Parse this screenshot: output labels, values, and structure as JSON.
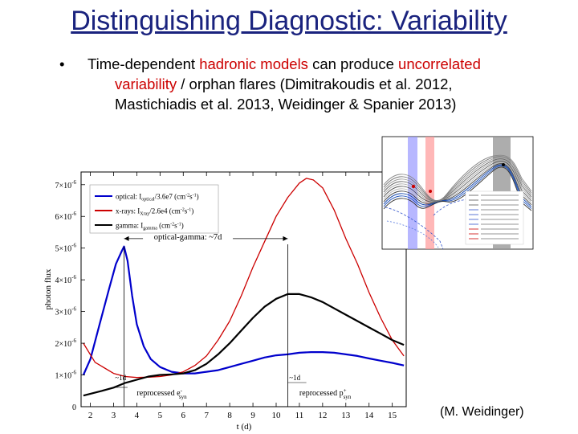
{
  "slide": {
    "title": "Distinguishing Diagnostic: Variability",
    "bullet_marker": "•",
    "bullet_line1_a": "Time-dependent ",
    "bullet_line1_b": "hadronic models",
    "bullet_line1_c": " can produce ",
    "bullet_line1_d": "uncorrelated",
    "bullet_line2_a": "variability",
    "bullet_line2_b": " / orphan flares (Dimitrakoudis et al. 2012,",
    "bullet_line3": "Mastichiadis et al. 2013, Weidinger & Spanier 2013)",
    "credit": "(M. Weidinger)"
  },
  "chart_data": [
    {
      "type": "line",
      "xlabel": "t (d)",
      "ylabel": "photon flux",
      "xlim": [
        1.6,
        15.6
      ],
      "ylim": [
        0,
        7.4e-06
      ],
      "x_ticks": [
        "2",
        "3",
        "4",
        "5",
        "6",
        "7",
        "8",
        "9",
        "10",
        "11",
        "12",
        "13",
        "14",
        "15"
      ],
      "y_ticks": [
        "0",
        "1×10",
        "2×10",
        "3×10",
        "4×10",
        "5×10",
        "6×10",
        "7×10"
      ],
      "y_tick_exp": "-6",
      "legend": [
        {
          "label": "optical: I",
          "sub": "optical",
          "rest": "/3.6e7 (cm",
          "color": "#0000cc"
        },
        {
          "label": "x-rays: I",
          "sub": "Xray",
          "rest": "/2.6e4 (cm",
          "color": "#cc0000"
        },
        {
          "label": "gamma: I",
          "sub": "gamma",
          "rest": " (cm",
          "color": "#000000"
        }
      ],
      "legend_unit_sup": "-2",
      "legend_unit_mid": "s",
      "legend_unit_sup2": "-1",
      "legend_close": ")",
      "annotations": {
        "lag": "optical-gamma: ~7d",
        "short_lag": "~1d",
        "short_lag_left": "~1d",
        "reprocessed_e": "reprocessed e",
        "reprocessed_e_sup": "-",
        "reprocessed_e_sub": "syn",
        "reprocessed_p": "reprocessed p",
        "reprocessed_p_sup": "+",
        "reprocessed_p_sub": "syn"
      },
      "series": [
        {
          "name": "optical",
          "color": "#0000cc",
          "x": [
            1.7,
            2.0,
            2.4,
            2.8,
            3.1,
            3.35,
            3.45,
            3.6,
            3.8,
            4.0,
            4.3,
            4.6,
            5.0,
            5.5,
            6.0,
            6.5,
            7.0,
            7.5,
            8.0,
            8.5,
            9.0,
            9.5,
            10.0,
            10.5,
            11.0,
            11.5,
            12.0,
            12.5,
            13.0,
            13.5,
            14.0,
            14.5,
            15.0,
            15.5
          ],
          "y": [
            1e-06,
            1.5e-06,
            2.6e-06,
            3.7e-06,
            4.5e-06,
            4.9e-06,
            5.05e-06,
            4.6e-06,
            3.5e-06,
            2.6e-06,
            1.9e-06,
            1.5e-06,
            1.25e-06,
            1.1e-06,
            1.05e-06,
            1.05e-06,
            1.1e-06,
            1.15e-06,
            1.25e-06,
            1.35e-06,
            1.45e-06,
            1.55e-06,
            1.62e-06,
            1.65e-06,
            1.7e-06,
            1.72e-06,
            1.72e-06,
            1.7e-06,
            1.65e-06,
            1.6e-06,
            1.52e-06,
            1.45e-06,
            1.38e-06,
            1.3e-06
          ]
        },
        {
          "name": "x-rays",
          "color": "#cc0000",
          "x": [
            1.7,
            2.2,
            3.0,
            3.5,
            4.0,
            4.5,
            5.0,
            5.5,
            6.0,
            6.5,
            7.0,
            7.5,
            8.0,
            8.5,
            9.0,
            9.5,
            10.0,
            10.5,
            11.0,
            11.3,
            11.6,
            12.0,
            12.5,
            13.0,
            13.5,
            14.0,
            14.5,
            15.0,
            15.5
          ],
          "y": [
            2e-06,
            1.4e-06,
            1.05e-06,
            9.5e-07,
            9.2e-07,
            9.3e-07,
            9.5e-07,
            1e-06,
            1.1e-06,
            1.3e-06,
            1.6e-06,
            2.1e-06,
            2.7e-06,
            3.5e-06,
            4.4e-06,
            5.2e-06,
            6e-06,
            6.6e-06,
            7.05e-06,
            7.2e-06,
            7.15e-06,
            6.9e-06,
            6.2e-06,
            5.3e-06,
            4.5e-06,
            3.6e-06,
            2.8e-06,
            2.1e-06,
            1.6e-06
          ]
        },
        {
          "name": "gamma",
          "color": "#000000",
          "x": [
            1.7,
            2.5,
            3.0,
            3.5,
            4.0,
            4.5,
            5.0,
            5.5,
            6.0,
            6.5,
            7.0,
            7.5,
            8.0,
            8.5,
            9.0,
            9.5,
            10.0,
            10.5,
            11.0,
            11.5,
            12.0,
            12.5,
            13.0,
            13.5,
            14.0,
            14.5,
            15.0,
            15.5
          ],
          "y": [
            3.5e-07,
            5e-07,
            6e-07,
            7.5e-07,
            8.5e-07,
            9.5e-07,
            1e-06,
            1.02e-06,
            1.05e-06,
            1.15e-06,
            1.35e-06,
            1.65e-06,
            2e-06,
            2.4e-06,
            2.8e-06,
            3.15e-06,
            3.4e-06,
            3.55e-06,
            3.55e-06,
            3.45e-06,
            3.3e-06,
            3.1e-06,
            2.9e-06,
            2.7e-06,
            2.5e-06,
            2.3e-06,
            2.1e-06,
            1.95e-06
          ]
        }
      ]
    },
    {
      "type": "line",
      "description_free": true,
      "series": []
    }
  ]
}
